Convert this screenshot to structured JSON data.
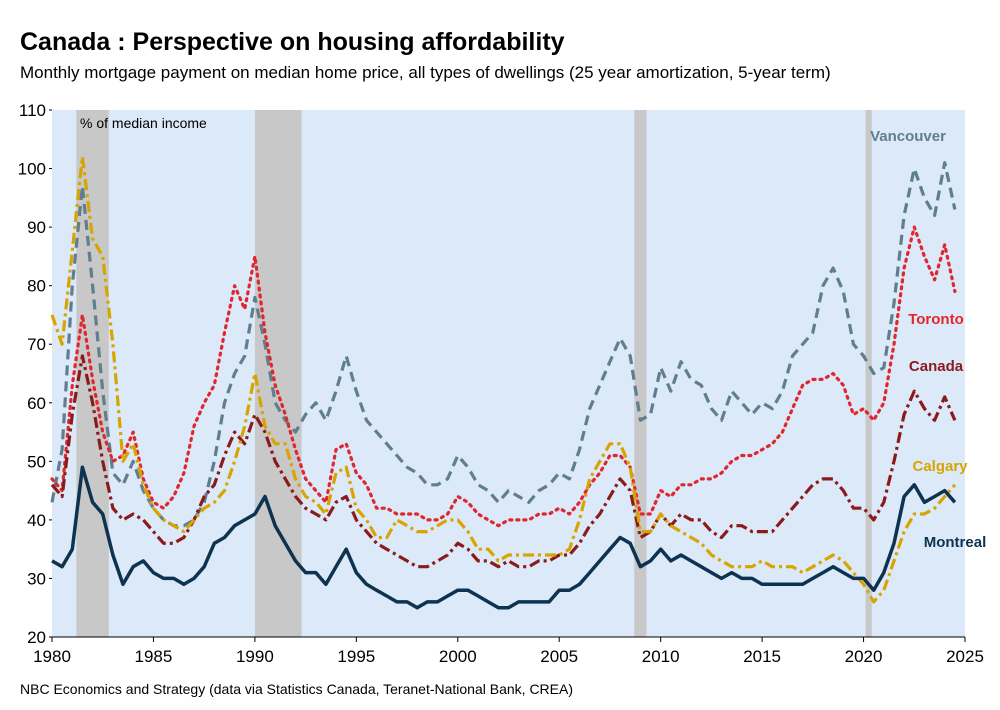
{
  "chart_data": {
    "type": "line",
    "title": "Canada : Perspective on housing affordability",
    "subtitle": "Monthly mortgage payment on median home price, all types of dwellings (25 year amortization, 5-year term)",
    "ylabel": "% of median income",
    "source": "NBC Economics and Strategy (data via Statistics Canada, Teranet-National Bank, CREA)",
    "xlim": [
      1980,
      2025
    ],
    "ylim": [
      20,
      110
    ],
    "xticks": [
      1980,
      1985,
      1990,
      1995,
      2000,
      2005,
      2010,
      2015,
      2020,
      2025
    ],
    "yticks": [
      20,
      30,
      40,
      50,
      60,
      70,
      80,
      90,
      100,
      110
    ],
    "grid": false,
    "background": "#dce9f8",
    "shaded_periods": [
      [
        1981.2,
        1982.8
      ],
      [
        1990.0,
        1992.3
      ],
      [
        2008.7,
        2009.3
      ],
      [
        2020.1,
        2020.4
      ]
    ],
    "shade_color": "#c8c8c8",
    "x": [
      1980,
      1980.5,
      1981,
      1981.5,
      1982,
      1982.5,
      1983,
      1983.5,
      1984,
      1984.5,
      1985,
      1985.5,
      1986,
      1986.5,
      1987,
      1987.5,
      1988,
      1988.5,
      1989,
      1989.5,
      1990,
      1990.5,
      1991,
      1991.5,
      1992,
      1992.5,
      1993,
      1993.5,
      1994,
      1994.5,
      1995,
      1995.5,
      1996,
      1996.5,
      1997,
      1997.5,
      1998,
      1998.5,
      1999,
      1999.5,
      2000,
      2000.5,
      2001,
      2001.5,
      2002,
      2002.5,
      2003,
      2003.5,
      2004,
      2004.5,
      2005,
      2005.5,
      2006,
      2006.5,
      2007,
      2007.5,
      2008,
      2008.5,
      2009,
      2009.5,
      2010,
      2010.5,
      2011,
      2011.5,
      2012,
      2012.5,
      2013,
      2013.5,
      2014,
      2014.5,
      2015,
      2015.5,
      2016,
      2016.5,
      2017,
      2017.5,
      2018,
      2018.5,
      2019,
      2019.5,
      2020,
      2020.5,
      2021,
      2021.5,
      2022,
      2022.5,
      2023,
      2023.5,
      2024,
      2024.5
    ],
    "series": [
      {
        "name": "Vancouver",
        "color": "#5f7f8f",
        "dash": "dashed",
        "values": [
          43,
          52,
          80,
          97,
          80,
          62,
          48,
          46,
          50,
          45,
          42,
          40,
          39,
          39,
          40,
          43,
          50,
          60,
          65,
          68,
          78,
          70,
          60,
          57,
          55,
          58,
          60,
          57,
          62,
          68,
          62,
          57,
          55,
          53,
          51,
          49,
          48,
          46,
          46,
          47,
          51,
          49,
          46,
          45,
          43,
          45,
          44,
          43,
          45,
          46,
          48,
          47,
          52,
          59,
          63,
          67,
          71,
          68,
          57,
          58,
          66,
          62,
          67,
          64,
          63,
          59,
          57,
          62,
          60,
          58,
          60,
          59,
          62,
          68,
          70,
          72,
          80,
          83,
          79,
          70,
          68,
          65,
          66,
          77,
          92,
          100,
          95,
          92,
          101,
          93
        ]
      },
      {
        "name": "Toronto",
        "color": "#e0262e",
        "dash": "dotted",
        "values": [
          47,
          45,
          63,
          75,
          64,
          55,
          50,
          51,
          55,
          47,
          43,
          42,
          44,
          48,
          56,
          60,
          63,
          72,
          80,
          76,
          85,
          72,
          63,
          58,
          52,
          47,
          45,
          43,
          52,
          53,
          48,
          46,
          42,
          42,
          41,
          41,
          41,
          40,
          40,
          41,
          44,
          43,
          41,
          40,
          39,
          40,
          40,
          40,
          41,
          41,
          42,
          41,
          43,
          46,
          48,
          51,
          51,
          49,
          41,
          41,
          45,
          44,
          46,
          46,
          47,
          47,
          48,
          50,
          51,
          51,
          52,
          53,
          55,
          59,
          63,
          64,
          64,
          65,
          63,
          58,
          59,
          57,
          60,
          70,
          83,
          90,
          85,
          81,
          87,
          79
        ]
      },
      {
        "name": "Canada",
        "color": "#8b1a1a",
        "dash": "dashdot",
        "values": [
          46,
          44,
          58,
          68,
          60,
          50,
          42,
          40,
          41,
          40,
          38,
          36,
          36,
          37,
          40,
          44,
          46,
          51,
          55,
          53,
          58,
          55,
          50,
          47,
          44,
          42,
          41,
          40,
          43,
          44,
          40,
          38,
          36,
          35,
          34,
          33,
          32,
          32,
          33,
          34,
          36,
          35,
          33,
          33,
          32,
          33,
          32,
          32,
          33,
          33,
          34,
          34,
          36,
          39,
          41,
          44,
          47,
          45,
          37,
          38,
          41,
          39,
          41,
          40,
          40,
          38,
          37,
          39,
          39,
          38,
          38,
          38,
          40,
          42,
          44,
          46,
          47,
          47,
          45,
          42,
          42,
          40,
          43,
          50,
          58,
          62,
          59,
          57,
          61,
          57
        ]
      },
      {
        "name": "Calgary",
        "color": "#d8a500",
        "dash": "dashdot",
        "values": [
          75,
          70,
          86,
          102,
          88,
          85,
          70,
          50,
          53,
          46,
          42,
          40,
          39,
          38,
          40,
          42,
          43,
          45,
          50,
          56,
          65,
          56,
          53,
          53,
          47,
          44,
          43,
          41,
          48,
          49,
          42,
          40,
          37,
          37,
          40,
          39,
          38,
          38,
          39,
          40,
          40,
          38,
          35,
          35,
          33,
          34,
          34,
          34,
          34,
          34,
          34,
          35,
          40,
          47,
          50,
          53,
          53,
          49,
          38,
          38,
          41,
          39,
          38,
          37,
          36,
          34,
          33,
          32,
          32,
          32,
          33,
          32,
          32,
          32,
          31,
          32,
          33,
          34,
          33,
          31,
          29,
          26,
          28,
          33,
          38,
          41,
          41,
          42,
          44,
          46
        ]
      },
      {
        "name": "Montreal",
        "color": "#0d3350",
        "dash": "solid",
        "values": [
          33,
          32,
          35,
          49,
          43,
          41,
          34,
          29,
          32,
          33,
          31,
          30,
          30,
          29,
          30,
          32,
          36,
          37,
          39,
          40,
          41,
          44,
          39,
          36,
          33,
          31,
          31,
          29,
          32,
          35,
          31,
          29,
          28,
          27,
          26,
          26,
          25,
          26,
          26,
          27,
          28,
          28,
          27,
          26,
          25,
          25,
          26,
          26,
          26,
          26,
          28,
          28,
          29,
          31,
          33,
          35,
          37,
          36,
          32,
          33,
          35,
          33,
          34,
          33,
          32,
          31,
          30,
          31,
          30,
          30,
          29,
          29,
          29,
          29,
          29,
          30,
          31,
          32,
          31,
          30,
          30,
          28,
          31,
          36,
          44,
          46,
          43,
          44,
          45,
          43
        ]
      }
    ]
  }
}
